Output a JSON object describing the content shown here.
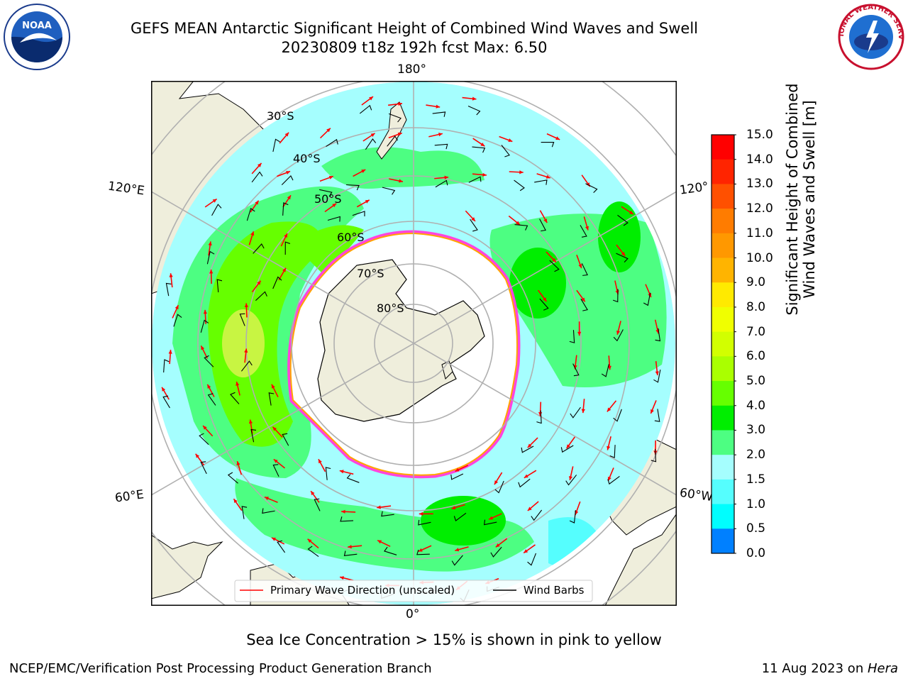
{
  "title": {
    "line1": "GEFS MEAN Antarctic Significant Height of Combined Wind Waves and Swell",
    "line2": "20230809 t18z 192h fcst   Max: 6.50"
  },
  "logos": {
    "left": {
      "text": "NOAA",
      "ring_text": "NATIONAL OCEANIC AND ATMOSPHERIC ADMINISTRATION · U.S. DEPARTMENT OF COMMERCE",
      "icon": "noaa-logo"
    },
    "right": {
      "text": "NATIONAL WEATHER SERVICE",
      "icon": "nws-logo"
    }
  },
  "map": {
    "projection": "south-polar-stereographic",
    "lon_labels": {
      "top": "180°",
      "bottom": "0°",
      "upper_left": "120°E",
      "lower_left": "60°E",
      "upper_right": "120°",
      "lower_right": "60°W"
    },
    "lat_labels": [
      "30°S",
      "40°S",
      "50°S",
      "60°S",
      "70°S",
      "80°S"
    ],
    "colors": {
      "land": "#efeedc",
      "ocean_light": "#a5fefe",
      "ocean_mid": "#4dfe82",
      "ocean_high": "#66ff00",
      "max_zone": "#c8f542",
      "ice": "#ff44dd",
      "arrow": "#ff0000",
      "barb": "#000000"
    }
  },
  "legend": {
    "primary": "Primary Wave Direction (unscaled)",
    "barbs": "Wind Barbs"
  },
  "colorbar": {
    "label_line1": "Significant Height of Combined",
    "label_line2": "Wind Waves and Swell [m]",
    "ticks": [
      "15.0",
      "14.0",
      "13.0",
      "12.0",
      "11.0",
      "10.0",
      "9.0",
      "8.0",
      "7.0",
      "6.0",
      "5.0",
      "4.0",
      "3.0",
      "2.0",
      "1.5",
      "1.0",
      "0.5",
      "0.0"
    ],
    "colors": [
      "#ff0000",
      "#ff2400",
      "#ff5000",
      "#ff7c00",
      "#ff9800",
      "#ffb400",
      "#ffea00",
      "#f0ff00",
      "#d2ff00",
      "#aaff00",
      "#66ff00",
      "#00ee00",
      "#4dfe82",
      "#a5fefe",
      "#55fefe",
      "#00fefe",
      "#0080ff",
      "#0000ff"
    ]
  },
  "footer": {
    "note": "Sea Ice Concentration > 15% is shown in pink to yellow",
    "left": "NCEP/EMC/Verification Post Processing Product Generation Branch",
    "right_date": "11 Aug 2023 on ",
    "right_host": "Hera"
  }
}
